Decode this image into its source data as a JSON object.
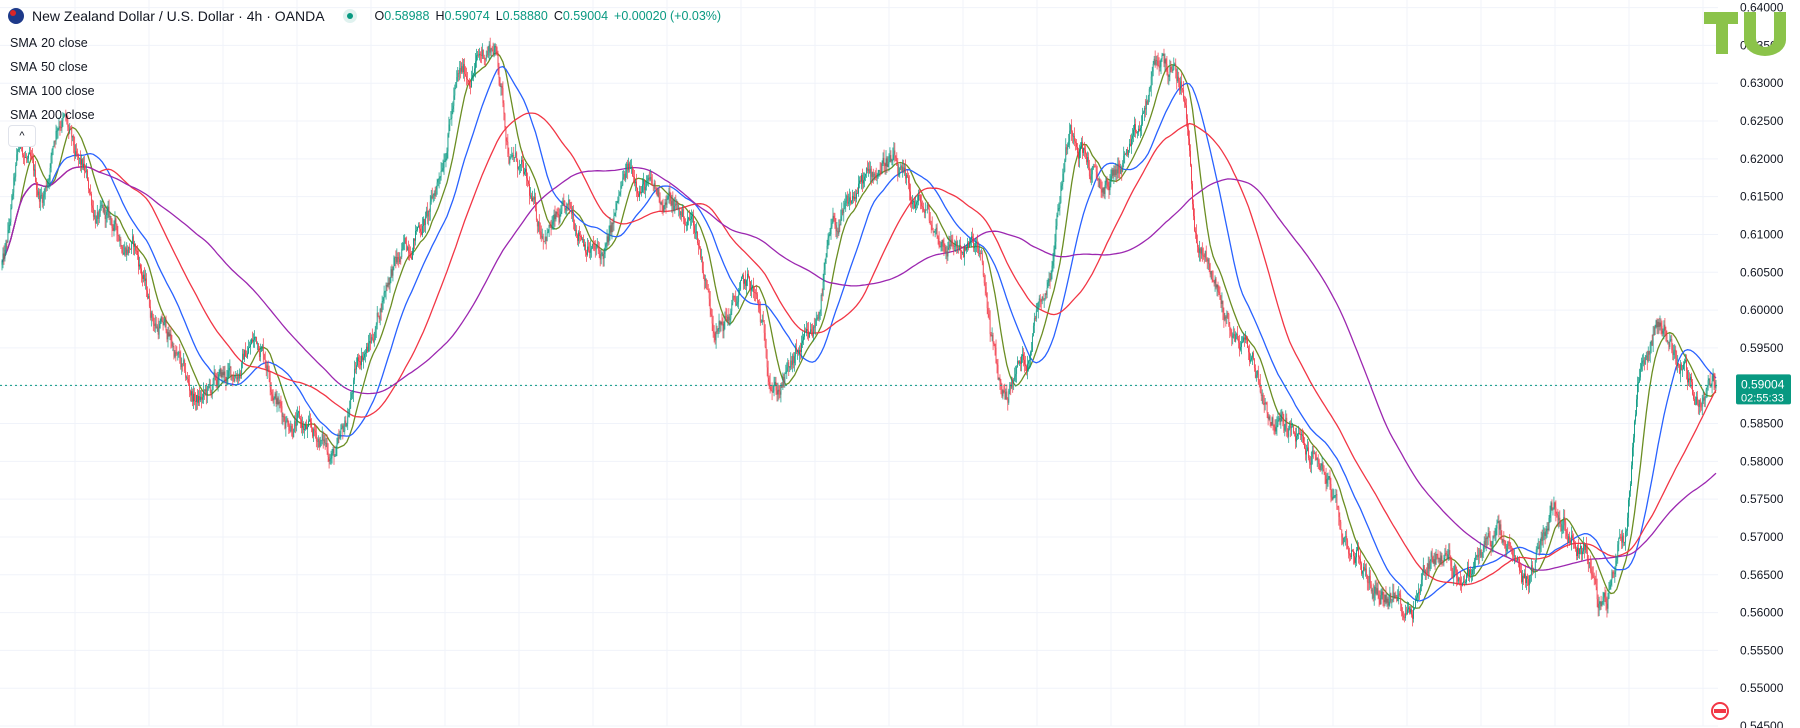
{
  "header": {
    "symbol_title": "New Zealand Dollar / U.S. Dollar · 4h · OANDA",
    "ohlc": {
      "o_label": "O",
      "o_value": "0.58988",
      "h_label": "H",
      "h_value": "0.59074",
      "l_label": "L",
      "l_value": "0.58880",
      "c_label": "C",
      "c_value": "0.59004",
      "change": "+0.00020 (+0.03%)"
    }
  },
  "indicators": [
    {
      "name": "SMA",
      "params": "20 close",
      "color": "#6b8e23"
    },
    {
      "name": "SMA",
      "params": "50 close",
      "color": "#2962ff"
    },
    {
      "name": "SMA",
      "params": "100 close",
      "color": "#f23645"
    },
    {
      "name": "SMA",
      "params": "200 close",
      "color": "#9c27b0"
    }
  ],
  "controls": {
    "collapse_glyph": "^"
  },
  "logo": {
    "icon": "tradingview-logo",
    "color": "#8bc34a"
  },
  "price_tag": {
    "price": "0.59004",
    "countdown": "02:55:33",
    "color": "#089981"
  },
  "colors": {
    "up": "#089981",
    "down": "#f23645",
    "grid": "#f0f3fa",
    "axis_text": "#131722"
  },
  "chart_data": {
    "type": "candlestick",
    "title": "",
    "xlabel": "",
    "ylabel": "",
    "ylim": [
      0.545,
      0.641
    ],
    "y_ticks": [
      "0.64000",
      "0.63500",
      "0.63000",
      "0.62500",
      "0.62000",
      "0.61500",
      "0.61000",
      "0.60500",
      "0.60000",
      "0.59500",
      "0.59000",
      "0.58500",
      "0.58000",
      "0.57500",
      "0.57000",
      "0.56500",
      "0.56000",
      "0.55500",
      "0.55000",
      "0.54500"
    ],
    "last_price": 0.59004,
    "price_anchors": [
      [
        0,
        0.606
      ],
      [
        20,
        0.621
      ],
      [
        40,
        0.615
      ],
      [
        60,
        0.626
      ],
      [
        80,
        0.618
      ],
      [
        100,
        0.612
      ],
      [
        130,
        0.609
      ],
      [
        160,
        0.598
      ],
      [
        200,
        0.588
      ],
      [
        230,
        0.591
      ],
      [
        260,
        0.596
      ],
      [
        290,
        0.586
      ],
      [
        320,
        0.583
      ],
      [
        340,
        0.581
      ],
      [
        370,
        0.595
      ],
      [
        400,
        0.606
      ],
      [
        430,
        0.612
      ],
      [
        470,
        0.631
      ],
      [
        500,
        0.635
      ],
      [
        520,
        0.62
      ],
      [
        550,
        0.611
      ],
      [
        580,
        0.612
      ],
      [
        610,
        0.607
      ],
      [
        640,
        0.618
      ],
      [
        670,
        0.615
      ],
      [
        700,
        0.612
      ],
      [
        730,
        0.598
      ],
      [
        760,
        0.603
      ],
      [
        790,
        0.59
      ],
      [
        820,
        0.595
      ],
      [
        850,
        0.611
      ],
      [
        880,
        0.617
      ],
      [
        900,
        0.62
      ],
      [
        930,
        0.614
      ],
      [
        960,
        0.609
      ],
      [
        990,
        0.608
      ],
      [
        1020,
        0.589
      ],
      [
        1040,
        0.593
      ],
      [
        1060,
        0.603
      ],
      [
        1090,
        0.624
      ],
      [
        1120,
        0.616
      ],
      [
        1150,
        0.621
      ],
      [
        1180,
        0.633
      ],
      [
        1200,
        0.63
      ],
      [
        1220,
        0.607
      ],
      [
        1260,
        0.596
      ],
      [
        1300,
        0.585
      ],
      [
        1340,
        0.58
      ],
      [
        1370,
        0.569
      ],
      [
        1400,
        0.563
      ],
      [
        1430,
        0.561
      ],
      [
        1460,
        0.568
      ],
      [
        1490,
        0.565
      ],
      [
        1520,
        0.57
      ],
      [
        1550,
        0.564
      ],
      [
        1580,
        0.574
      ],
      [
        1610,
        0.569
      ],
      [
        1630,
        0.56
      ],
      [
        1650,
        0.57
      ],
      [
        1670,
        0.594
      ],
      [
        1690,
        0.598
      ],
      [
        1710,
        0.593
      ],
      [
        1725,
        0.588
      ],
      [
        1745,
        0.59
      ]
    ],
    "sma_series": [
      {
        "name": "SMA 20 close",
        "period": 20,
        "color": "#6b8e23"
      },
      {
        "name": "SMA 50 close",
        "period": 50,
        "color": "#2962ff"
      },
      {
        "name": "SMA 100 close",
        "period": 100,
        "color": "#f23645"
      },
      {
        "name": "SMA 200 close",
        "period": 200,
        "color": "#9c27b0"
      }
    ],
    "grid": true
  }
}
